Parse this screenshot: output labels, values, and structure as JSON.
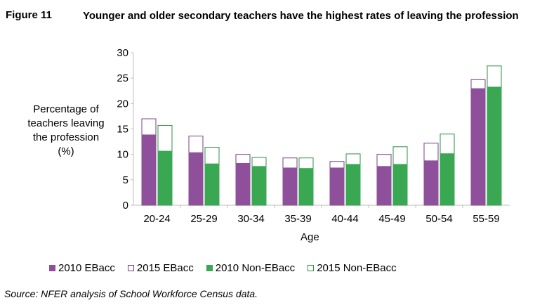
{
  "figure_label": "Figure 11",
  "title": "Younger and older secondary teachers have the highest rates of leaving the profession",
  "source": "Source: NFER analysis of School Workforce Census data.",
  "colors": {
    "purple": "#8e4f9b",
    "green": "#3aa853",
    "bar_edge": "#7a3f86",
    "green_edge": "#2e9346",
    "axis": "#bfbfbf"
  },
  "chart_data": {
    "type": "bar",
    "categories": [
      "20-24",
      "25-29",
      "30-34",
      "35-39",
      "40-44",
      "45-49",
      "50-54",
      "55-59"
    ],
    "series": [
      {
        "name": "2010 EBacc",
        "values": [
          13.9,
          10.4,
          8.3,
          7.4,
          7.4,
          7.7,
          8.8,
          23.0
        ]
      },
      {
        "name": "2015 EBacc",
        "values": [
          17.0,
          13.6,
          10.0,
          9.3,
          8.6,
          10.0,
          12.2,
          24.7
        ]
      },
      {
        "name": "2010 Non-EBacc",
        "values": [
          10.7,
          8.2,
          7.7,
          7.3,
          8.1,
          8.1,
          10.2,
          23.3
        ]
      },
      {
        "name": "2015 Non-EBacc",
        "values": [
          15.7,
          11.4,
          9.4,
          9.3,
          10.1,
          11.5,
          14.0,
          27.4
        ]
      }
    ],
    "xlabel": "Age",
    "ylabel": [
      "Percentage of",
      "teachers leaving",
      "the profession",
      "(%)"
    ],
    "ylim": [
      0,
      30
    ],
    "yticks": [
      0,
      5,
      10,
      15,
      20,
      25,
      30
    ],
    "grid": false,
    "legend_position": "bottom"
  }
}
